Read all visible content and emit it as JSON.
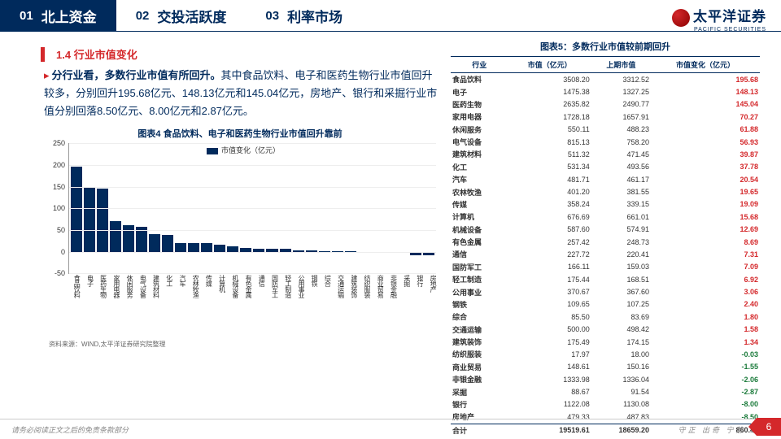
{
  "header": {
    "tabs": [
      {
        "num": "01",
        "label": "北上资金",
        "active": true
      },
      {
        "num": "02",
        "label": "交投活跃度",
        "active": false
      },
      {
        "num": "03",
        "label": "利率市场",
        "active": false
      }
    ],
    "logo_cn": "太平洋证券",
    "logo_en": "PACIFIC SECURITIES"
  },
  "section": {
    "number": "1.4",
    "title": "行业市值变化",
    "body_prefix": "分行业看，多数行业市值有所回升。",
    "body_rest": "其中食品饮料、电子和医药生物行业市值回升较多，分别回升195.68亿元、148.13亿元和145.04亿元，房地产、银行和采掘行业市值分别回落8.50亿元、8.00亿元和2.87亿元。"
  },
  "chart4": {
    "title": "图表4 食品饮料、电子和医药生物行业市值回升靠前",
    "legend": "市值变化（亿元）",
    "ylim": [
      -50,
      250
    ],
    "ytick_step": 50,
    "bar_color": "#002a5c",
    "grid_color": "#eeeeee",
    "categories": [
      "食品饮料",
      "电子",
      "医药生物",
      "家用电器",
      "休闲服务",
      "电气设备",
      "建筑材料",
      "化工",
      "汽车",
      "农林牧渔",
      "传媒",
      "计算机",
      "机械设备",
      "有色金属",
      "通信",
      "国防军工",
      "轻工制造",
      "公用事业",
      "钢铁",
      "综合",
      "交通运输",
      "建筑装饰",
      "纺织服装",
      "商业贸易",
      "非银金融",
      "采掘",
      "银行",
      "房地产"
    ],
    "values": [
      195.68,
      148.13,
      145.04,
      70.27,
      61.88,
      56.93,
      39.87,
      37.78,
      20.54,
      19.65,
      19.09,
      15.68,
      12.69,
      8.69,
      7.31,
      7.09,
      6.92,
      3.06,
      2.4,
      1.8,
      1.58,
      1.34,
      -0.03,
      -1.55,
      -2.06,
      -2.87,
      -8.0,
      -8.5
    ],
    "source": "资料来源：WIND,太平洋证券研究院整理"
  },
  "table5": {
    "title": "图表5：多数行业市值较前期回升",
    "columns": [
      "行业",
      "市值（亿元）",
      "上期市值",
      "市值变化（亿元）"
    ],
    "rows": [
      [
        "食品饮料",
        "3508.20",
        "3312.52",
        "195.68"
      ],
      [
        "电子",
        "1475.38",
        "1327.25",
        "148.13"
      ],
      [
        "医药生物",
        "2635.82",
        "2490.77",
        "145.04"
      ],
      [
        "家用电器",
        "1728.18",
        "1657.91",
        "70.27"
      ],
      [
        "休闲服务",
        "550.11",
        "488.23",
        "61.88"
      ],
      [
        "电气设备",
        "815.13",
        "758.20",
        "56.93"
      ],
      [
        "建筑材料",
        "511.32",
        "471.45",
        "39.87"
      ],
      [
        "化工",
        "531.34",
        "493.56",
        "37.78"
      ],
      [
        "汽车",
        "481.71",
        "461.17",
        "20.54"
      ],
      [
        "农林牧渔",
        "401.20",
        "381.55",
        "19.65"
      ],
      [
        "传媒",
        "358.24",
        "339.15",
        "19.09"
      ],
      [
        "计算机",
        "676.69",
        "661.01",
        "15.68"
      ],
      [
        "机械设备",
        "587.60",
        "574.91",
        "12.69"
      ],
      [
        "有色金属",
        "257.42",
        "248.73",
        "8.69"
      ],
      [
        "通信",
        "227.72",
        "220.41",
        "7.31"
      ],
      [
        "国防军工",
        "166.11",
        "159.03",
        "7.09"
      ],
      [
        "轻工制造",
        "175.44",
        "168.51",
        "6.92"
      ],
      [
        "公用事业",
        "370.67",
        "367.60",
        "3.06"
      ],
      [
        "钢铁",
        "109.65",
        "107.25",
        "2.40"
      ],
      [
        "综合",
        "85.50",
        "83.69",
        "1.80"
      ],
      [
        "交通运输",
        "500.00",
        "498.42",
        "1.58"
      ],
      [
        "建筑装饰",
        "175.49",
        "174.15",
        "1.34"
      ],
      [
        "纺织服装",
        "17.97",
        "18.00",
        "-0.03"
      ],
      [
        "商业贸易",
        "148.61",
        "150.16",
        "-1.55"
      ],
      [
        "非银金融",
        "1333.98",
        "1336.04",
        "-2.06"
      ],
      [
        "采掘",
        "88.67",
        "91.54",
        "-2.87"
      ],
      [
        "银行",
        "1122.08",
        "1130.08",
        "-8.00"
      ],
      [
        "房地产",
        "479.33",
        "487.83",
        "-8.50"
      ]
    ],
    "total": [
      "合计",
      "19519.61",
      "18659.20",
      "860.41"
    ]
  },
  "footer": {
    "left": "请务必阅读正文之后的免责条款部分",
    "right": "守正 出奇 宁静 致远",
    "page": "6"
  }
}
